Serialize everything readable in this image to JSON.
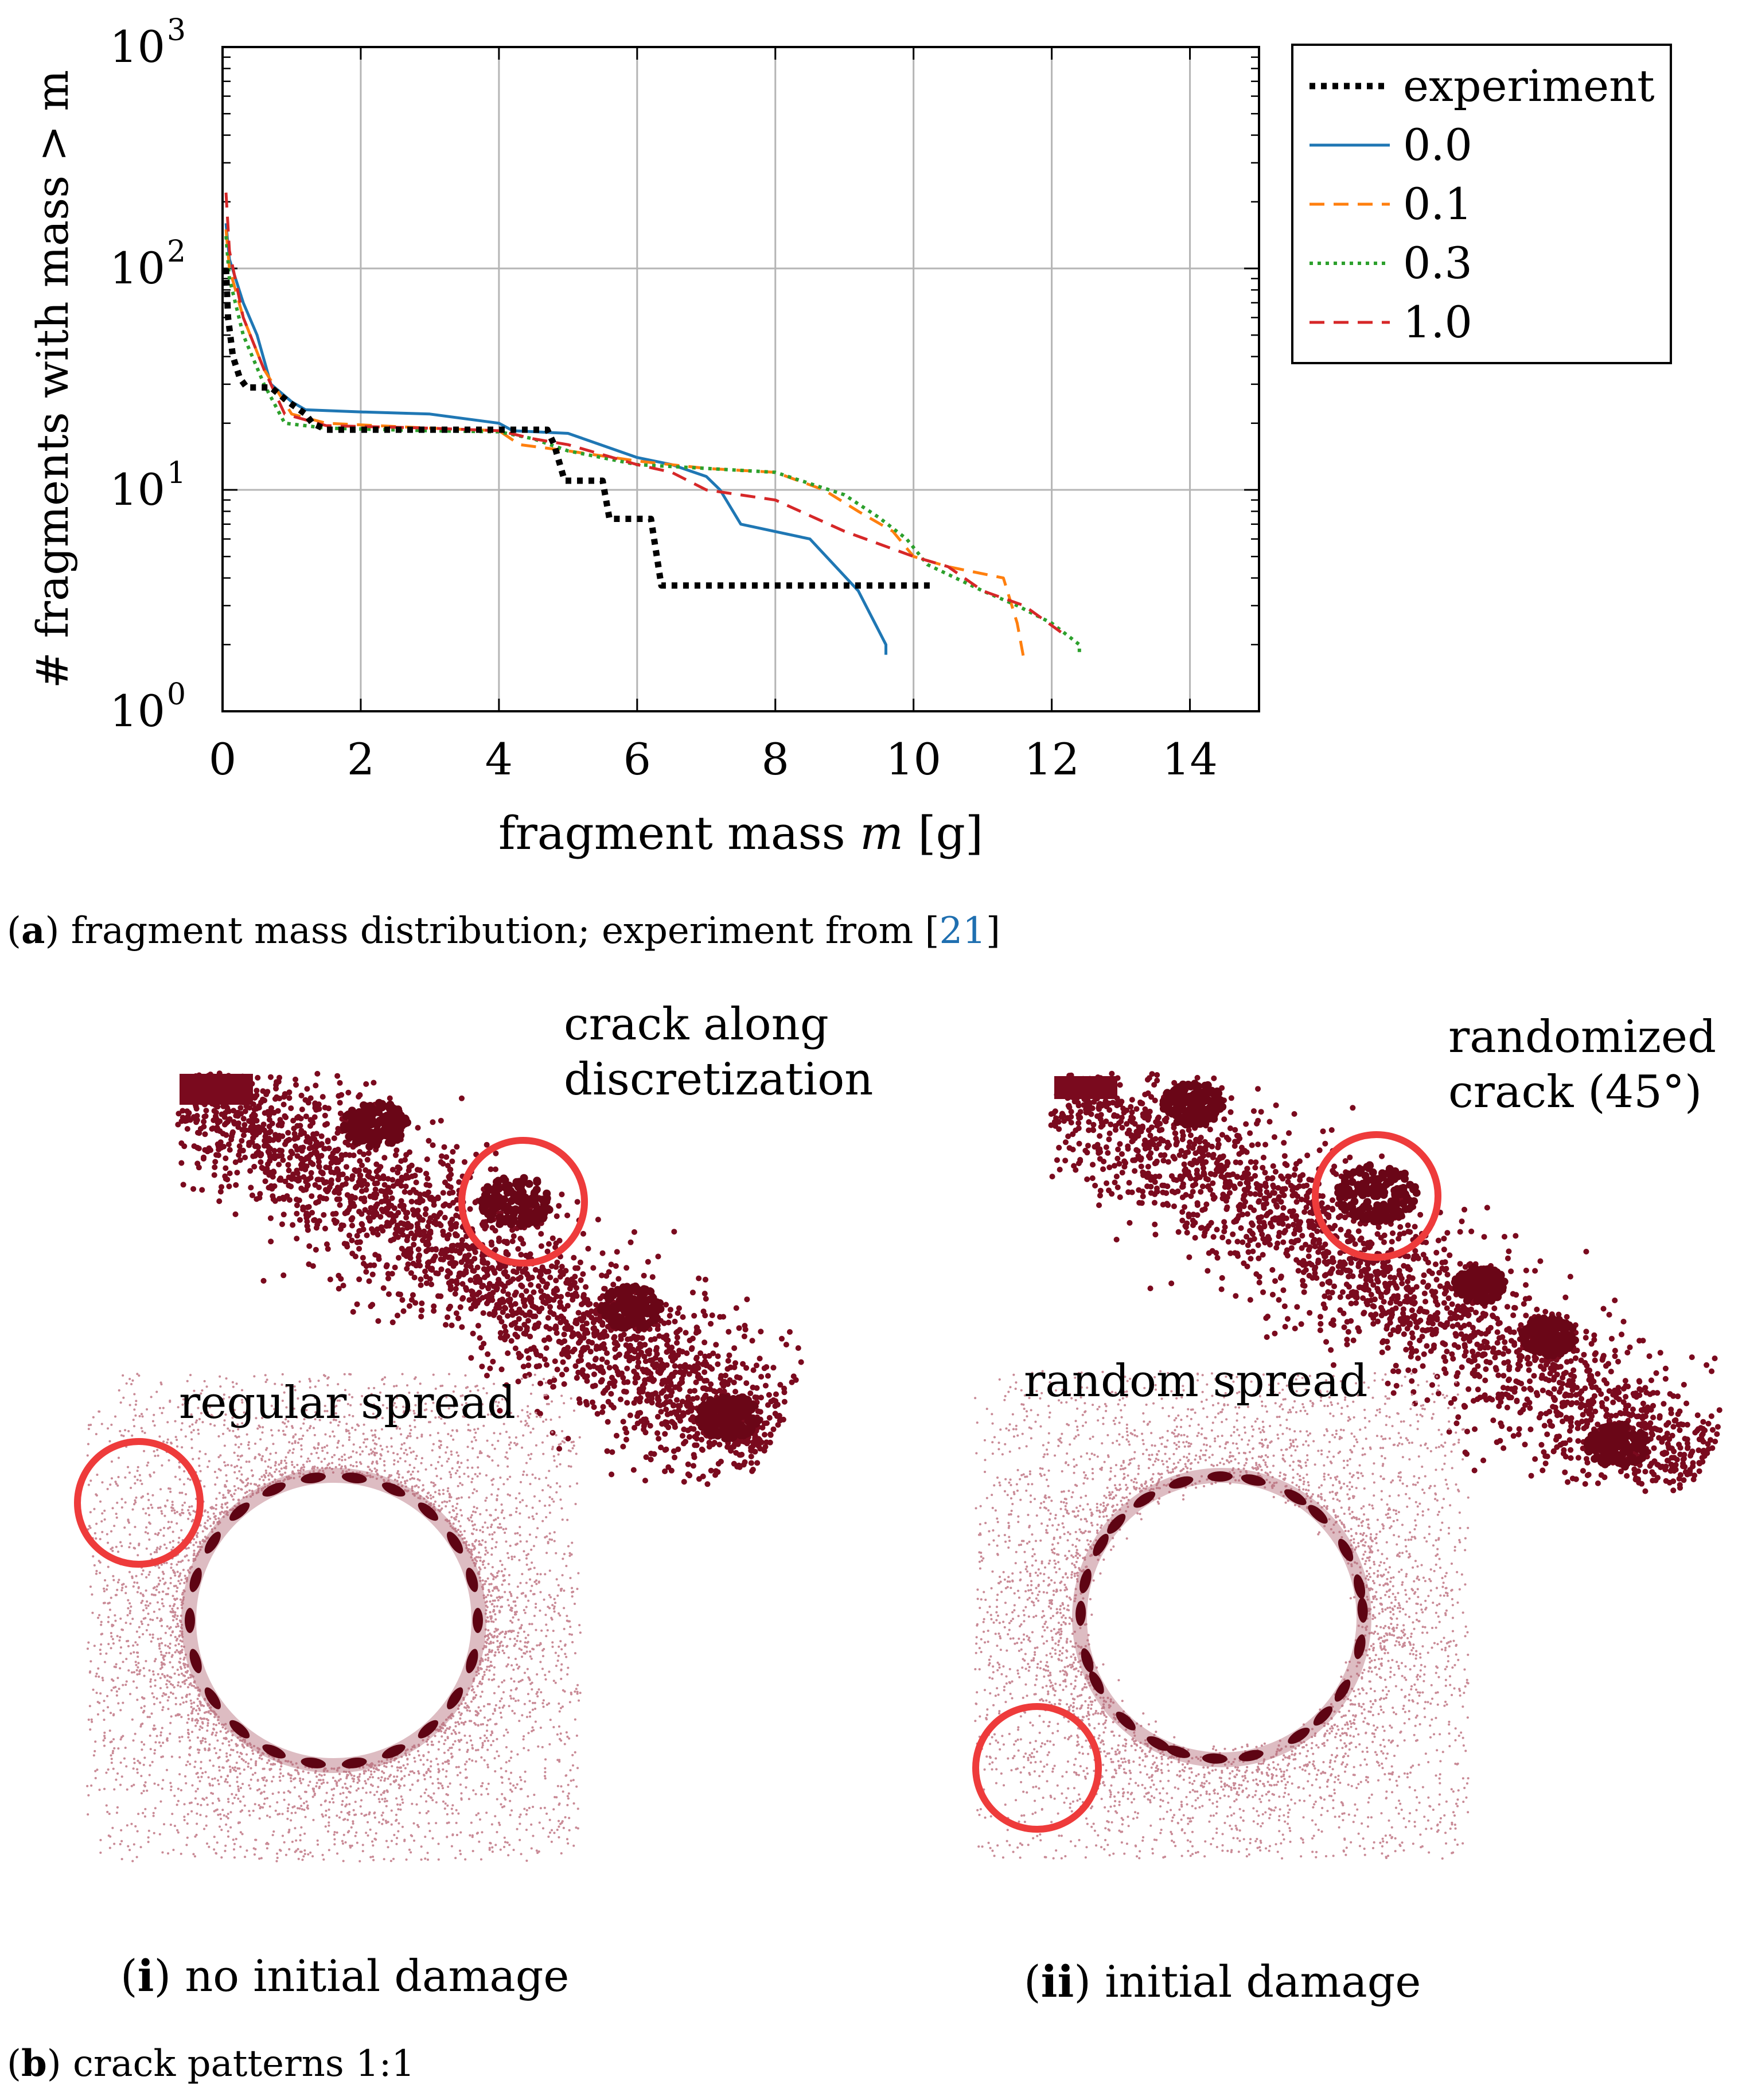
{
  "chart_data": {
    "type": "line",
    "yscale": "log",
    "xlabel_prefix": "fragment mass ",
    "xlabel_var": "m",
    "xlabel_unit": " [g]",
    "ylabel": "# fragments with mass > m",
    "xlim": [
      0,
      15
    ],
    "ylim": [
      1,
      1000
    ],
    "xticks": [
      0,
      2,
      4,
      6,
      8,
      10,
      12,
      14
    ],
    "yticks": [
      1,
      10,
      100,
      1000
    ],
    "ytick_labels": [
      "10",
      "10",
      "10",
      "10"
    ],
    "ytick_exponents": [
      "0",
      "1",
      "2",
      "3"
    ],
    "grid": true,
    "legend_position": "outside-right",
    "series": [
      {
        "name": "experiment",
        "color": "#000000",
        "style": "dotted-thick",
        "points": [
          [
            0.05,
            100
          ],
          [
            0.08,
            60
          ],
          [
            0.15,
            40
          ],
          [
            0.25,
            32
          ],
          [
            0.35,
            29
          ],
          [
            0.7,
            29
          ],
          [
            0.95,
            25
          ],
          [
            1.2,
            22
          ],
          [
            1.3,
            20
          ],
          [
            1.5,
            18.7
          ],
          [
            4.7,
            18.7
          ],
          [
            4.8,
            16
          ],
          [
            4.95,
            11
          ],
          [
            5.5,
            11
          ],
          [
            5.6,
            7.4
          ],
          [
            6.2,
            7.4
          ],
          [
            6.35,
            3.7
          ],
          [
            10.3,
            3.7
          ]
        ]
      },
      {
        "name": "0.0",
        "color": "#1f77b4",
        "style": "solid",
        "points": [
          [
            0.05,
            160
          ],
          [
            0.1,
            110
          ],
          [
            0.3,
            70
          ],
          [
            0.5,
            50
          ],
          [
            0.7,
            30
          ],
          [
            1,
            25
          ],
          [
            1.2,
            23
          ],
          [
            2,
            22.5
          ],
          [
            3,
            22
          ],
          [
            4,
            20
          ],
          [
            4.2,
            18.5
          ],
          [
            5,
            18
          ],
          [
            6,
            14
          ],
          [
            6.5,
            13
          ],
          [
            7,
            11.5
          ],
          [
            7.2,
            10
          ],
          [
            7.5,
            7
          ],
          [
            8.5,
            6
          ],
          [
            9.2,
            3.5
          ],
          [
            9.6,
            2
          ],
          [
            9.6,
            1.8
          ]
        ]
      },
      {
        "name": "0.1",
        "color": "#ff7f0e",
        "style": "dashed",
        "points": [
          [
            0.05,
            150
          ],
          [
            0.1,
            100
          ],
          [
            0.3,
            60
          ],
          [
            0.6,
            35
          ],
          [
            1,
            22
          ],
          [
            1.5,
            20
          ],
          [
            3,
            19
          ],
          [
            4,
            18.5
          ],
          [
            4.3,
            16
          ],
          [
            5,
            15
          ],
          [
            6,
            13.5
          ],
          [
            7,
            12.5
          ],
          [
            8,
            12
          ],
          [
            8.7,
            10
          ],
          [
            9.2,
            8
          ],
          [
            9.7,
            6.5
          ],
          [
            10,
            5
          ],
          [
            10.5,
            4.5
          ],
          [
            11.3,
            4
          ],
          [
            11.5,
            2.5
          ],
          [
            11.6,
            1.7
          ]
        ]
      },
      {
        "name": "0.3",
        "color": "#2ca02c",
        "style": "dotted",
        "points": [
          [
            0.05,
            140
          ],
          [
            0.1,
            90
          ],
          [
            0.3,
            50
          ],
          [
            0.6,
            30
          ],
          [
            0.9,
            20
          ],
          [
            1.5,
            19
          ],
          [
            3,
            18.5
          ],
          [
            4,
            18.3
          ],
          [
            4.5,
            17
          ],
          [
            5,
            15
          ],
          [
            6,
            13
          ],
          [
            7,
            12.5
          ],
          [
            8,
            12
          ],
          [
            9,
            9.5
          ],
          [
            9.5,
            7.5
          ],
          [
            9.9,
            6
          ],
          [
            10.2,
            4.6
          ],
          [
            11,
            3.5
          ],
          [
            11.5,
            3
          ],
          [
            12,
            2.5
          ],
          [
            12.4,
            2
          ],
          [
            12.4,
            1.8
          ]
        ]
      },
      {
        "name": "1.0",
        "color": "#d62728",
        "style": "dashed",
        "points": [
          [
            0.05,
            220
          ],
          [
            0.1,
            120
          ],
          [
            0.3,
            60
          ],
          [
            0.6,
            35
          ],
          [
            0.9,
            22
          ],
          [
            1.5,
            19.5
          ],
          [
            3,
            19
          ],
          [
            4,
            18.5
          ],
          [
            4.5,
            17
          ],
          [
            5,
            16
          ],
          [
            6,
            13
          ],
          [
            6.5,
            12
          ],
          [
            7,
            10
          ],
          [
            8,
            9
          ],
          [
            9,
            6.5
          ],
          [
            10,
            5
          ],
          [
            10.5,
            4.5
          ],
          [
            11,
            3.5
          ],
          [
            11.6,
            3
          ],
          [
            12.2,
            2.2
          ]
        ]
      }
    ]
  },
  "captions": {
    "a_tag": "a",
    "a_text": " fragment mass distribution; experiment from ",
    "a_ref": "21",
    "b_tag": "b",
    "b_text": " crack patterns 1:1",
    "i_tag": "i",
    "i_text": " no initial damage",
    "ii_tag": "ii",
    "ii_text": " initial damage"
  },
  "annotations": {
    "crack_along_line1": "crack along",
    "crack_along_line2": "discretization",
    "randomized_line1": "randomized",
    "randomized_line2": "crack (45°)",
    "regular_spread": "regular spread",
    "random_spread": "random spread"
  }
}
